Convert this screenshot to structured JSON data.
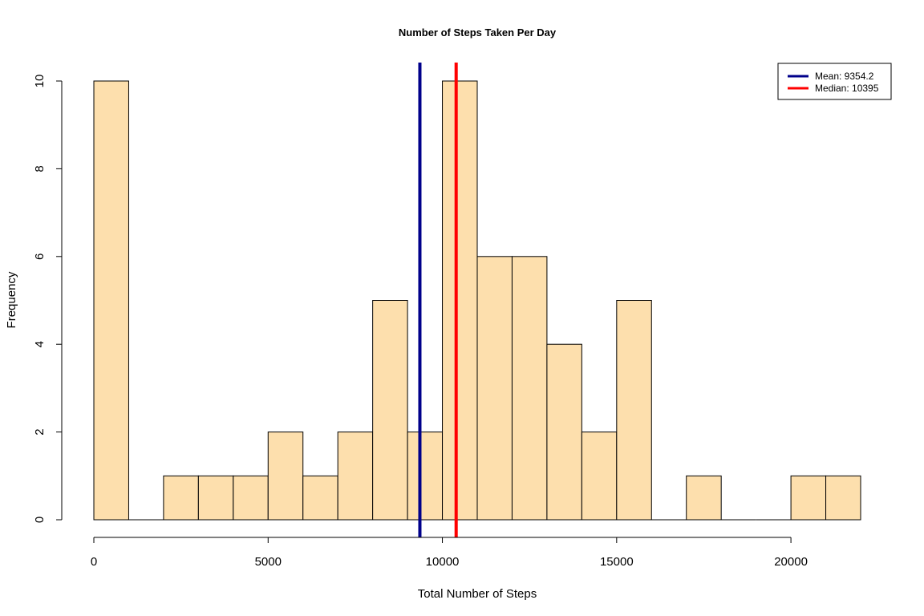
{
  "chart_data": {
    "type": "bar",
    "title": "Number of Steps Taken Per Day",
    "xlabel": "Total Number of Steps",
    "ylabel": "Frequency",
    "bin_width": 1000,
    "bins": [
      {
        "start": 0,
        "end": 1000,
        "count": 10
      },
      {
        "start": 1000,
        "end": 2000,
        "count": 0
      },
      {
        "start": 2000,
        "end": 3000,
        "count": 1
      },
      {
        "start": 3000,
        "end": 4000,
        "count": 1
      },
      {
        "start": 4000,
        "end": 5000,
        "count": 1
      },
      {
        "start": 5000,
        "end": 6000,
        "count": 2
      },
      {
        "start": 6000,
        "end": 7000,
        "count": 1
      },
      {
        "start": 7000,
        "end": 8000,
        "count": 2
      },
      {
        "start": 8000,
        "end": 9000,
        "count": 5
      },
      {
        "start": 9000,
        "end": 10000,
        "count": 2
      },
      {
        "start": 10000,
        "end": 11000,
        "count": 10
      },
      {
        "start": 11000,
        "end": 12000,
        "count": 6
      },
      {
        "start": 12000,
        "end": 13000,
        "count": 6
      },
      {
        "start": 13000,
        "end": 14000,
        "count": 4
      },
      {
        "start": 14000,
        "end": 15000,
        "count": 2
      },
      {
        "start": 15000,
        "end": 16000,
        "count": 5
      },
      {
        "start": 16000,
        "end": 17000,
        "count": 0
      },
      {
        "start": 17000,
        "end": 18000,
        "count": 1
      },
      {
        "start": 18000,
        "end": 19000,
        "count": 0
      },
      {
        "start": 19000,
        "end": 20000,
        "count": 0
      },
      {
        "start": 20000,
        "end": 21000,
        "count": 1
      },
      {
        "start": 21000,
        "end": 22000,
        "count": 1
      }
    ],
    "xlim": [
      0,
      22000
    ],
    "ylim": [
      0,
      10
    ],
    "x_ticks": [
      0,
      5000,
      10000,
      15000,
      20000
    ],
    "y_ticks": [
      0,
      2,
      4,
      6,
      8,
      10
    ],
    "bar_color": "#FDDFAD",
    "grid": false,
    "reference_lines": [
      {
        "name": "Mean",
        "label": "Mean:  9354.2",
        "value": 9354.2,
        "color": "#00008B"
      },
      {
        "name": "Median",
        "label": "Median:  10395",
        "value": 10395,
        "color": "#FF0000"
      }
    ],
    "legend": {
      "position": "top-right",
      "items": [
        "Mean:  9354.2",
        "Median:  10395"
      ]
    }
  }
}
